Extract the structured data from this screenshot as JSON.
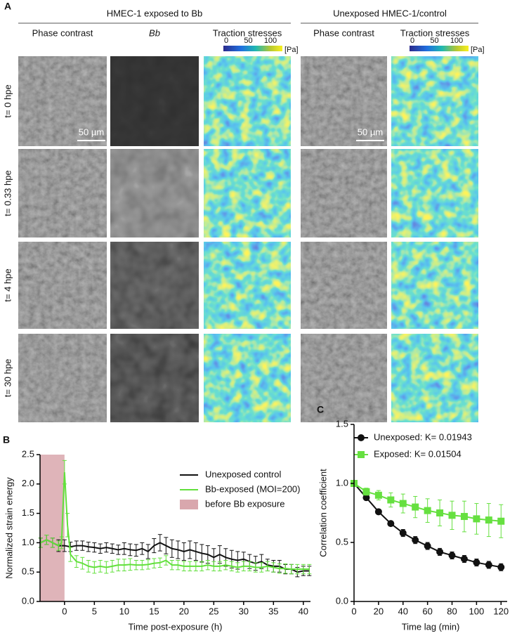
{
  "panel_a": {
    "label": "A",
    "groups": [
      "HMEC-1 exposed to Bb",
      "Unexposed HMEC-1/control"
    ],
    "columns": [
      "Phase contrast",
      "Bb",
      "Traction stresses",
      "Phase contrast",
      "Traction stresses"
    ],
    "rows": [
      "t= 0 hpe",
      "t= 0.33 hpe",
      "t= 4 hpe",
      "t= 30  hpe"
    ],
    "colorbar_ticks": [
      0,
      50,
      100
    ],
    "colorbar_unit": "[Pa]",
    "scale_bar": "50 µm"
  },
  "chart_data": [
    {
      "type": "line",
      "panel_label": "B",
      "xlabel": "Time post-exposure (h)",
      "ylabel": "Normalized strain energy",
      "xlim": [
        -4.1,
        41.2
      ],
      "xticks": [
        0,
        5,
        10,
        15,
        20,
        25,
        30,
        35,
        40
      ],
      "ylim": [
        0,
        2.5
      ],
      "yticks": [
        {
          "value": 0,
          "label": "0.0"
        },
        0.5,
        {
          "value": 1,
          "label": "1.0"
        },
        1.5,
        {
          "value": 2,
          "label": "2.0"
        },
        2.5
      ],
      "span": {
        "name": "before Bb exposure",
        "x": [
          -4.1,
          0
        ],
        "color": "#d9a7ad"
      },
      "series": [
        {
          "name": "Unexposed control",
          "color": "#111111",
          "x": [
            -4,
            -3,
            -2,
            -1,
            0,
            1,
            2,
            3,
            4,
            5,
            6,
            7,
            8,
            9,
            10,
            11,
            12,
            13,
            14,
            15,
            16,
            17,
            18,
            19,
            20,
            21,
            22,
            23,
            24,
            25,
            26,
            27,
            28,
            29,
            30,
            31,
            32,
            33,
            34,
            35,
            36,
            37,
            38,
            39,
            40,
            41
          ],
          "values": [
            1.0,
            1.05,
            1.0,
            0.95,
            0.95,
            0.93,
            0.95,
            0.95,
            0.93,
            0.92,
            0.9,
            0.92,
            0.9,
            0.88,
            0.9,
            0.88,
            0.87,
            0.9,
            0.85,
            0.95,
            1.0,
            0.95,
            0.9,
            0.88,
            0.85,
            0.88,
            0.85,
            0.82,
            0.8,
            0.75,
            0.8,
            0.75,
            0.72,
            0.7,
            0.72,
            0.68,
            0.65,
            0.68,
            0.62,
            0.6,
            0.6,
            0.55,
            0.55,
            0.5,
            0.52,
            0.52
          ],
          "errors": [
            0.08,
            0.08,
            0.08,
            0.1,
            0.1,
            0.08,
            0.08,
            0.08,
            0.08,
            0.08,
            0.08,
            0.08,
            0.08,
            0.08,
            0.1,
            0.1,
            0.1,
            0.1,
            0.12,
            0.12,
            0.14,
            0.14,
            0.15,
            0.15,
            0.15,
            0.15,
            0.15,
            0.15,
            0.15,
            0.15,
            0.15,
            0.15,
            0.15,
            0.15,
            0.12,
            0.12,
            0.12,
            0.12,
            0.1,
            0.1,
            0.1,
            0.08,
            0.08,
            0.08,
            0.08,
            0.08
          ]
        },
        {
          "name": "Bb-exposed (MOI=200)",
          "color": "#62e03c",
          "x": [
            -4,
            -3,
            -2,
            -1,
            -0.5,
            0,
            0.5,
            1,
            2,
            3,
            4,
            5,
            6,
            7,
            8,
            9,
            10,
            11,
            12,
            13,
            14,
            15,
            16,
            17,
            18,
            19,
            20,
            21,
            22,
            23,
            24,
            25,
            26,
            27,
            28,
            29,
            30,
            31,
            32,
            33,
            34,
            35,
            36,
            37,
            38,
            39,
            40,
            41
          ],
          "values": [
            1.0,
            1.05,
            1.0,
            0.95,
            1.0,
            2.2,
            1.3,
            0.8,
            0.68,
            0.65,
            0.6,
            0.58,
            0.6,
            0.58,
            0.6,
            0.62,
            0.62,
            0.63,
            0.62,
            0.62,
            0.63,
            0.65,
            0.66,
            0.7,
            0.62,
            0.62,
            0.6,
            0.6,
            0.6,
            0.6,
            0.62,
            0.6,
            0.6,
            0.62,
            0.6,
            0.58,
            0.6,
            0.6,
            0.58,
            0.58,
            0.6,
            0.58,
            0.56,
            0.56,
            0.55,
            0.55,
            0.55,
            0.55
          ],
          "errors": [
            0.08,
            0.08,
            0.08,
            0.08,
            0.1,
            0.2,
            0.2,
            0.12,
            0.1,
            0.1,
            0.1,
            0.1,
            0.1,
            0.1,
            0.1,
            0.1,
            0.1,
            0.1,
            0.08,
            0.08,
            0.08,
            0.08,
            0.08,
            0.08,
            0.08,
            0.08,
            0.08,
            0.08,
            0.08,
            0.08,
            0.08,
            0.08,
            0.08,
            0.08,
            0.08,
            0.08,
            0.08,
            0.08,
            0.08,
            0.08,
            0.08,
            0.08,
            0.08,
            0.08,
            0.08,
            0.08,
            0.08,
            0.08
          ]
        }
      ]
    },
    {
      "type": "line",
      "panel_label": "C",
      "xlabel": "Time lag (min)",
      "ylabel": "Correlation coefficient",
      "xlim": [
        0,
        125
      ],
      "xticks": [
        0,
        20,
        40,
        60,
        80,
        100,
        120
      ],
      "ylim": [
        0,
        1.5
      ],
      "yticks": [
        {
          "value": 0,
          "label": "0.0"
        },
        0.5,
        {
          "value": 1,
          "label": "1.0"
        },
        1.5
      ],
      "series": [
        {
          "name": "Unexposed: K= 0.01943",
          "color": "#111111",
          "marker": "circle",
          "x": [
            0,
            10,
            20,
            30,
            40,
            50,
            60,
            70,
            80,
            90,
            100,
            110,
            120
          ],
          "values": [
            1.0,
            0.88,
            0.76,
            0.66,
            0.58,
            0.52,
            0.47,
            0.42,
            0.39,
            0.36,
            0.33,
            0.31,
            0.29
          ],
          "errors": [
            0,
            0.02,
            0.02,
            0.02,
            0.03,
            0.03,
            0.03,
            0.03,
            0.03,
            0.03,
            0.03,
            0.03,
            0.03
          ]
        },
        {
          "name": "Exposed: K= 0.01504",
          "color": "#66e040",
          "marker": "square",
          "x": [
            0,
            10,
            20,
            30,
            40,
            50,
            60,
            70,
            80,
            90,
            100,
            110,
            120
          ],
          "values": [
            1.0,
            0.93,
            0.9,
            0.86,
            0.83,
            0.8,
            0.77,
            0.75,
            0.73,
            0.72,
            0.7,
            0.69,
            0.68
          ],
          "errors": [
            0,
            0.03,
            0.04,
            0.06,
            0.08,
            0.09,
            0.1,
            0.11,
            0.12,
            0.13,
            0.13,
            0.14,
            0.14
          ]
        }
      ]
    }
  ]
}
